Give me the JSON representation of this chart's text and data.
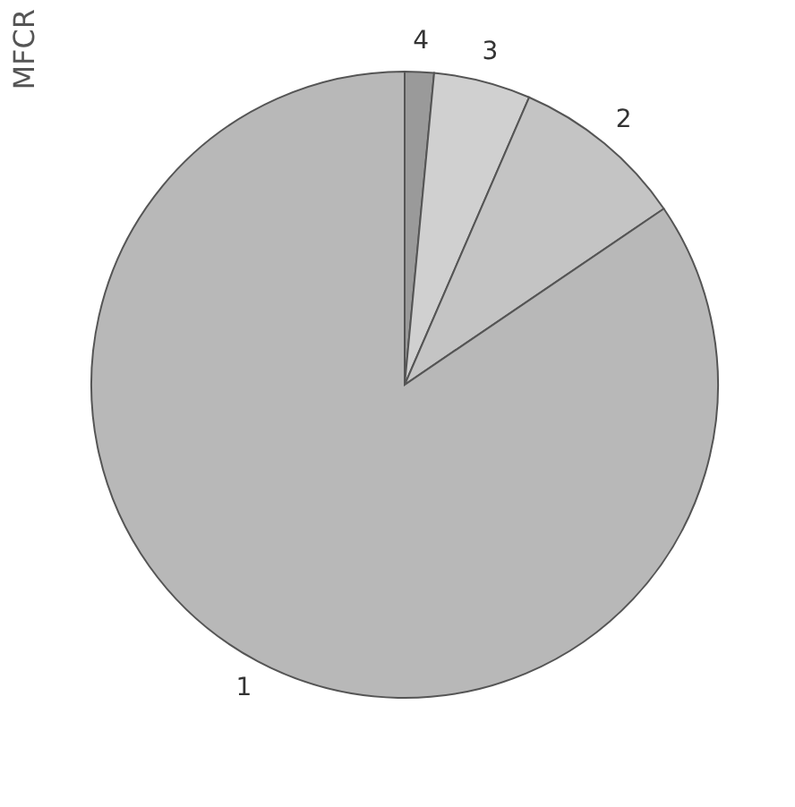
{
  "chart_data": {
    "type": "pie",
    "title": "MFCR",
    "categories": [
      "4",
      "3",
      "2",
      "1"
    ],
    "values": [
      1.5,
      5,
      9,
      84.5
    ],
    "colors": [
      "#9a9a9a",
      "#d0d0d0",
      "#c4c4c4",
      "#b8b8b8"
    ],
    "legend": false
  }
}
